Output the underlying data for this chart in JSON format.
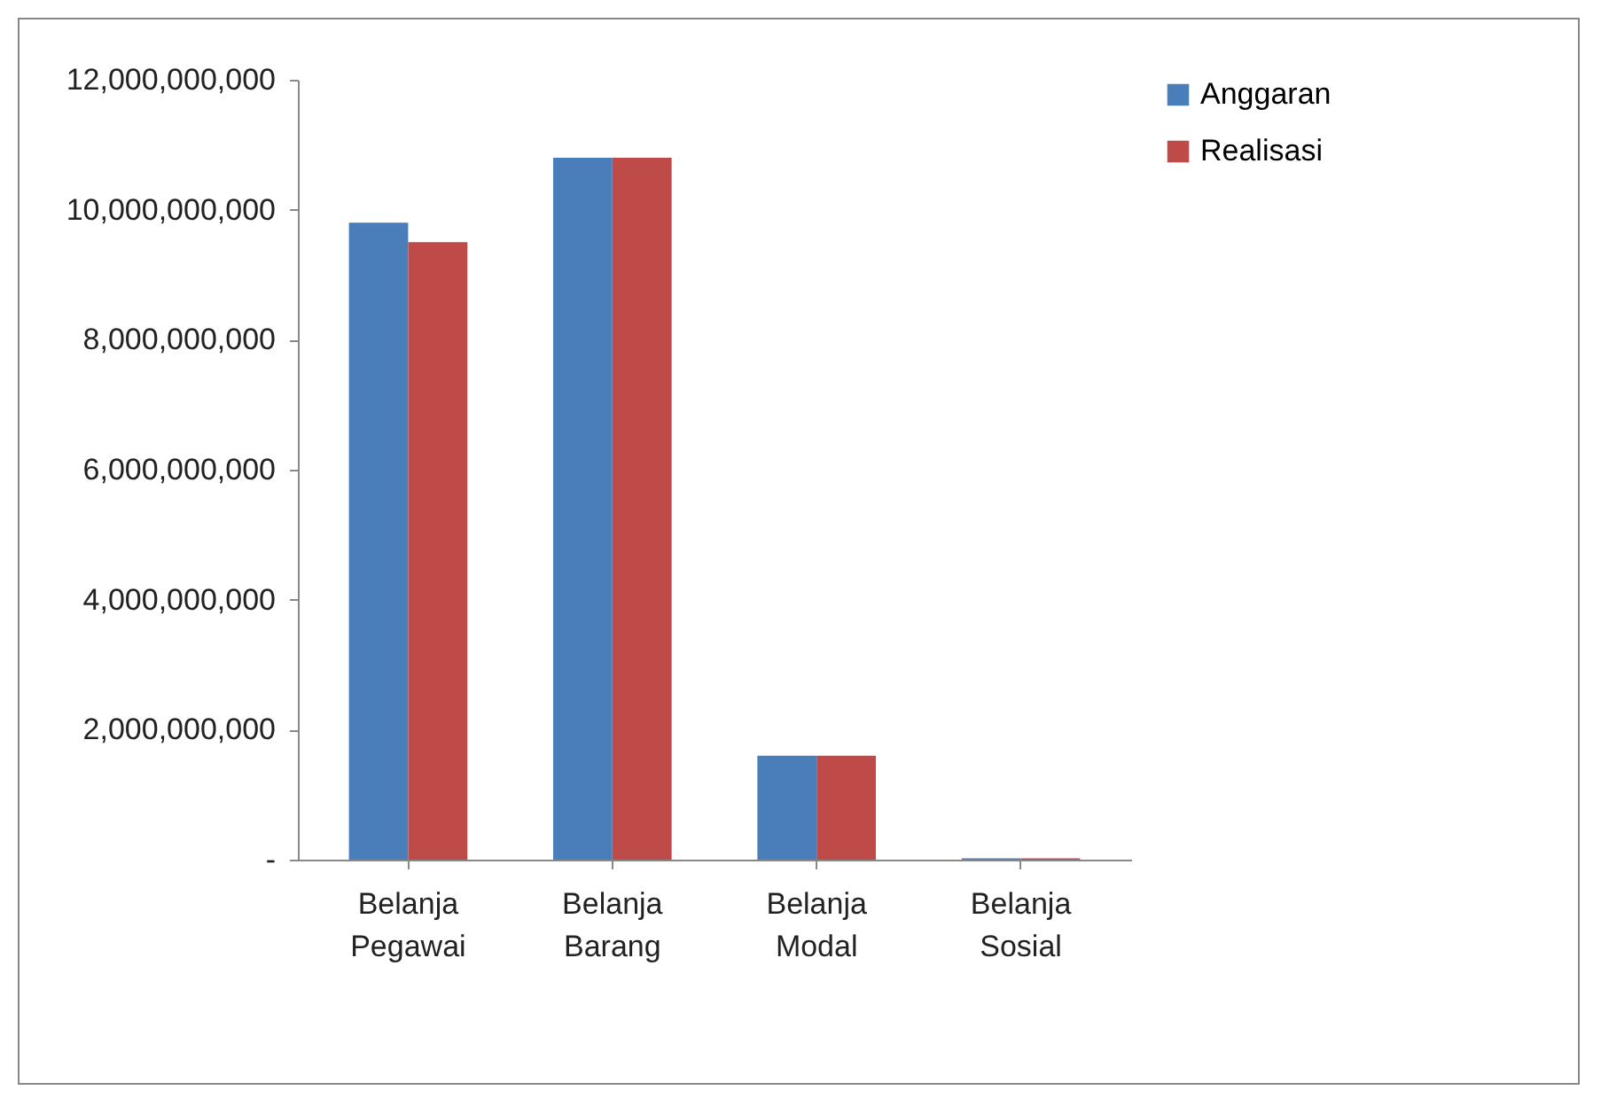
{
  "chart_data": {
    "type": "bar",
    "categories": [
      "Belanja Pegawai",
      "Belanja Barang",
      "Belanja Modal",
      "Belanja Sosial"
    ],
    "series": [
      {
        "name": "Anggaran",
        "color": "#4a7ebb",
        "values": [
          9800000000,
          10800000000,
          1600000000,
          20000000
        ]
      },
      {
        "name": "Realisasi",
        "color": "#be4b48",
        "values": [
          9500000000,
          10800000000,
          1600000000,
          20000000
        ]
      }
    ],
    "ylim": [
      0,
      12000000000
    ],
    "yticks": [
      {
        "value": 0,
        "label": "-"
      },
      {
        "value": 2000000000,
        "label": "2,000,000,000"
      },
      {
        "value": 4000000000,
        "label": "4,000,000,000"
      },
      {
        "value": 6000000000,
        "label": "6,000,000,000"
      },
      {
        "value": 8000000000,
        "label": "8,000,000,000"
      },
      {
        "value": 10000000000,
        "label": "10,000,000,000"
      },
      {
        "value": 12000000000,
        "label": "12,000,000,000"
      }
    ],
    "grid": false,
    "legend": "right"
  }
}
